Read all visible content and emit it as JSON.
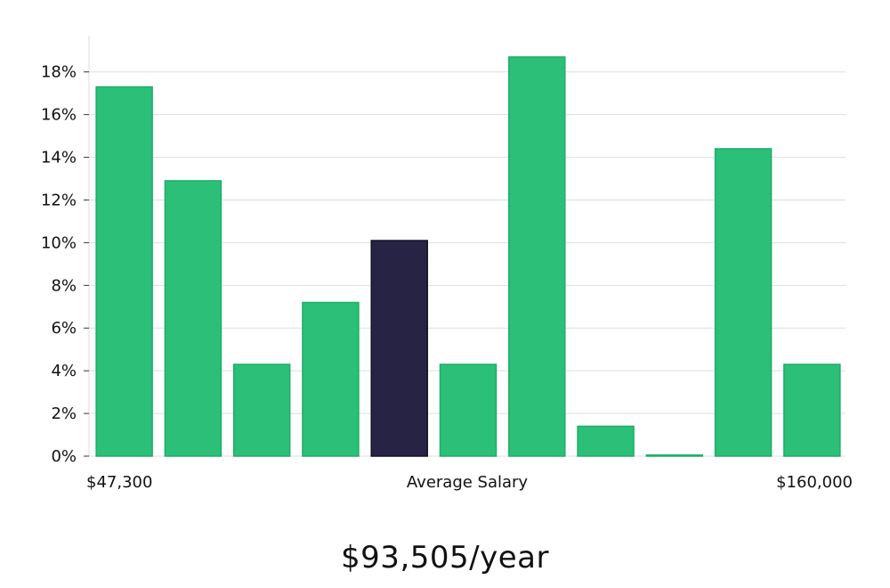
{
  "chart_data": {
    "type": "bar",
    "values": [
      17.3,
      12.9,
      4.3,
      7.2,
      10.1,
      4.3,
      18.7,
      1.4,
      0.05,
      14.4,
      4.3
    ],
    "highlight_index": 4,
    "ylim": [
      0,
      19.7
    ],
    "yticks": [
      0,
      2,
      4,
      6,
      8,
      10,
      12,
      14,
      16,
      18
    ],
    "ytick_labels": [
      "0%",
      "2%",
      "4%",
      "6%",
      "8%",
      "10%",
      "12%",
      "14%",
      "16%",
      "18%"
    ],
    "x_min_label": "$47,300",
    "x_center_label": "Average Salary",
    "x_max_label": "$160,000",
    "grid": true,
    "colors": {
      "bar": "#2bbf78",
      "bar_edge": "#1fae69",
      "highlight": "#262345",
      "grid": "#dddddd"
    }
  },
  "summary": {
    "salary_text": "$93,505/year"
  }
}
